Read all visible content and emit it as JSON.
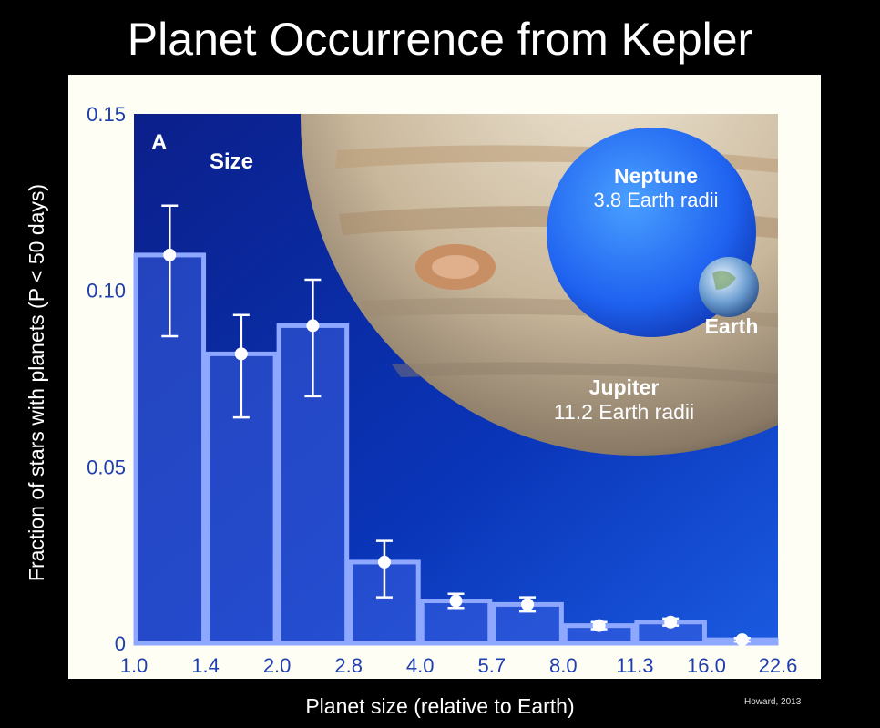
{
  "title": "Planet Occurrence from Kepler",
  "credit": "Howard, 2013",
  "panel": {
    "letter": "A",
    "name": "Size"
  },
  "annotations": {
    "neptune": {
      "name": "Neptune",
      "size": "3.8 Earth radii"
    },
    "earth": {
      "name": "Earth"
    },
    "jupiter": {
      "name": "Jupiter",
      "size": "11.2 Earth radii"
    }
  },
  "colors": {
    "background": "#000000",
    "plot_bg": "#0a2ea8",
    "bar_fill": "#3a5ee0",
    "bar_edge": "#8fa8ff",
    "axis_text": "#1f3fae",
    "frame": "#fffef4"
  },
  "chart_data": {
    "type": "bar",
    "xlabel": "Planet size (relative to Earth)",
    "ylabel": "Fraction of stars with planets (P < 50 days)",
    "x_ticks": [
      "1.0",
      "1.4",
      "2.0",
      "2.8",
      "4.0",
      "5.7",
      "8.0",
      "11.3",
      "16.0",
      "22.6"
    ],
    "categories": [
      "1.0–1.4",
      "1.4–2.0",
      "2.0–2.8",
      "2.8–4.0",
      "4.0–5.7",
      "5.7–8.0",
      "8.0–11.3",
      "11.3–16.0",
      "16.0–22.6"
    ],
    "values": [
      0.11,
      0.082,
      0.09,
      0.023,
      0.012,
      0.011,
      0.005,
      0.006,
      0.001
    ],
    "error_low": [
      0.087,
      0.064,
      0.07,
      0.013,
      0.01,
      0.009,
      0.004,
      0.005,
      0.0005
    ],
    "error_high": [
      0.124,
      0.093,
      0.103,
      0.029,
      0.014,
      0.013,
      0.006,
      0.007,
      0.0015
    ],
    "ylim": [
      0,
      0.15
    ],
    "y_ticks": [
      "0",
      "0.05",
      "0.10",
      "0.15"
    ],
    "y_tick_values": [
      0,
      0.05,
      0.1,
      0.15
    ],
    "grid": false,
    "legend": "none"
  }
}
